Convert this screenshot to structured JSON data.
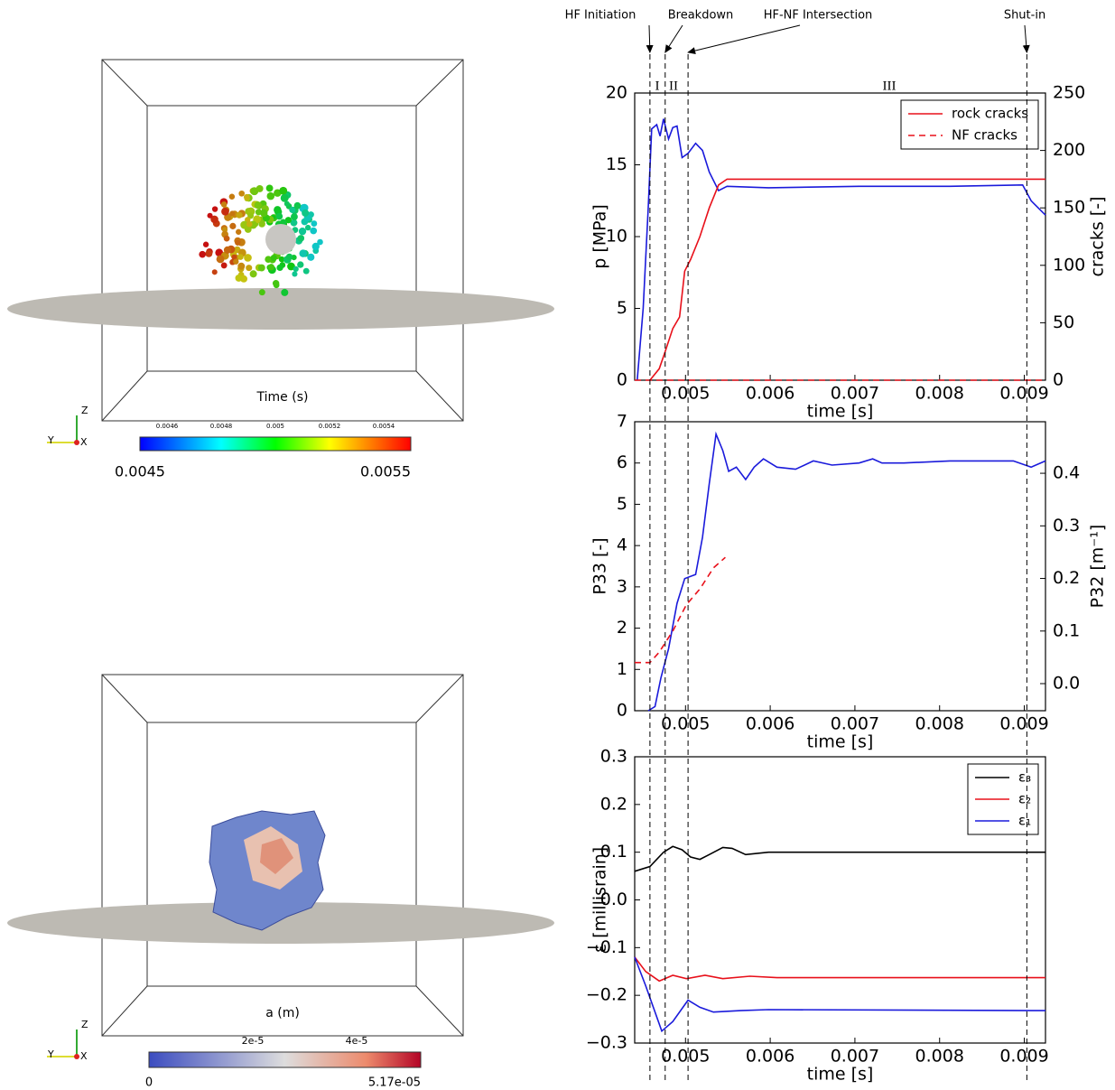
{
  "chart_data": [
    {
      "type": "line",
      "xlabel": "time [s]",
      "ylabel": "p [MPa]",
      "ylabel_color": "#1a1adb",
      "y2label": "cracks [-]",
      "y2label_color": "#e8101a",
      "xlim": [
        0.0044,
        0.00925
      ],
      "xticks": [
        0.005,
        0.006,
        0.007,
        0.008,
        0.009
      ],
      "ylim": [
        0,
        20
      ],
      "yticks": [
        0,
        5,
        10,
        15,
        20
      ],
      "y2lim": [
        0,
        250
      ],
      "y2ticks": [
        0,
        50,
        100,
        150,
        200,
        250
      ],
      "legend": "upper right",
      "series": [
        {
          "color": "#1a1adb",
          "style": "solid",
          "x": [
            0.00443,
            0.0045,
            0.00456,
            0.0046,
            0.00466,
            0.0047,
            0.00474,
            0.0048,
            0.00485,
            0.0049,
            0.00496,
            0.00503,
            0.00512,
            0.0052,
            0.00528,
            0.00539,
            0.00549,
            0.00598,
            0.00705,
            0.00812,
            0.00898,
            0.00908,
            0.00925
          ],
          "values": [
            0,
            5,
            12,
            17.5,
            17.8,
            17,
            18.2,
            16.8,
            17.6,
            17.7,
            15.5,
            15.8,
            16.5,
            16,
            14.5,
            13.2,
            13.5,
            13.4,
            13.5,
            13.5,
            13.6,
            12.5,
            11.5
          ]
        },
        {
          "name": "rock cracks",
          "color": "#e8101a",
          "style": "solid",
          "axis": "y2",
          "x": [
            0.00458,
            0.00469,
            0.00476,
            0.00485,
            0.00493,
            0.00499,
            0.00506,
            0.00517,
            0.00528,
            0.00539,
            0.00549,
            0.00925
          ],
          "values": [
            0,
            10,
            25,
            45,
            55,
            95,
            105,
            125,
            150,
            170,
            175,
            175
          ]
        },
        {
          "name": "NF cracks",
          "color": "#e8101a",
          "style": "dashed",
          "axis": "y2",
          "x": [
            0.0044,
            0.00925
          ],
          "values": [
            0,
            0
          ]
        }
      ]
    },
    {
      "type": "line",
      "xlabel": "time [s]",
      "ylabel": "P33 [-]",
      "ylabel_color": "#1a1adb",
      "y2label": "P32 [m⁻¹]",
      "y2label_color": "#e8101a",
      "xlim": [
        0.0044,
        0.00925
      ],
      "xticks": [
        0.005,
        0.006,
        0.007,
        0.008,
        0.009
      ],
      "ylim": [
        0,
        7
      ],
      "yticks": [
        0,
        1,
        2,
        3,
        4,
        5,
        6,
        7
      ],
      "y2lim": [
        -0.0515,
        0.498
      ],
      "y2ticks": [
        {
          "value": 0,
          "label": "0.0"
        },
        0.1,
        0.2,
        0.3,
        0.4
      ],
      "series": [
        {
          "color": "#1a1adb",
          "style": "solid",
          "x": [
            0.00456,
            0.00464,
            0.00471,
            0.0048,
            0.0049,
            0.00499,
            0.00512,
            0.0052,
            0.00528,
            0.00536,
            0.00544,
            0.00551,
            0.0056,
            0.00571,
            0.00581,
            0.00592,
            0.00608,
            0.0063,
            0.00651,
            0.00673,
            0.00705,
            0.00721,
            0.00732,
            0.00758,
            0.00812,
            0.00887,
            0.00908,
            0.00925
          ],
          "values": [
            0,
            0.1,
            0.8,
            1.5,
            2.6,
            3.2,
            3.3,
            4.2,
            5.5,
            6.7,
            6.3,
            5.8,
            5.9,
            5.6,
            5.9,
            6.1,
            5.9,
            5.85,
            6.05,
            5.95,
            6.0,
            6.1,
            6.0,
            6.0,
            6.05,
            6.05,
            5.9,
            6.05
          ]
        },
        {
          "color": "#e8101a",
          "style": "dashed",
          "axis": "y2",
          "x": [
            0.0044,
            0.00458,
            0.00469,
            0.00485,
            0.00501,
            0.00517,
            0.00533,
            0.00547
          ],
          "values": [
            0.04,
            0.04,
            0.06,
            0.1,
            0.15,
            0.18,
            0.22,
            0.24
          ]
        }
      ]
    },
    {
      "type": "line",
      "xlabel": "time [s]",
      "ylabel": "ε [millisrain]",
      "ylabel_color": "#000000",
      "xlim": [
        0.0044,
        0.00925
      ],
      "xticks": [
        0.005,
        0.006,
        0.007,
        0.008,
        0.009
      ],
      "ylim": [
        -0.3,
        0.3
      ],
      "yticks": [
        {
          "value": -0.3,
          "label": "−0.3"
        },
        {
          "value": -0.2,
          "label": "−0.2"
        },
        {
          "value": -0.1,
          "label": "−0.1"
        },
        {
          "value": 0,
          "label": "0.0"
        },
        0.1,
        0.2,
        0.3
      ],
      "legend": "upper right",
      "series": [
        {
          "name": "ε₃",
          "color": "#000000",
          "style": "solid",
          "x": [
            0.0044,
            0.00458,
            0.00474,
            0.00485,
            0.00496,
            0.00506,
            0.00517,
            0.00528,
            0.00544,
            0.00555,
            0.00571,
            0.00598,
            0.00651,
            0.00925
          ],
          "values": [
            0.06,
            0.07,
            0.1,
            0.112,
            0.105,
            0.09,
            0.085,
            0.095,
            0.11,
            0.108,
            0.095,
            0.1,
            0.1,
            0.1
          ]
        },
        {
          "name": "ε₂",
          "color": "#e8101a",
          "style": "solid",
          "x": [
            0.0044,
            0.00453,
            0.00469,
            0.00485,
            0.00501,
            0.00523,
            0.00544,
            0.00576,
            0.00608,
            0.00925
          ],
          "values": [
            -0.12,
            -0.15,
            -0.17,
            -0.158,
            -0.165,
            -0.158,
            -0.165,
            -0.16,
            -0.163,
            -0.163
          ]
        },
        {
          "name": "ε₁",
          "color": "#1a1adb",
          "style": "solid",
          "x": [
            0.0044,
            0.00453,
            0.00472,
            0.00485,
            0.00503,
            0.00517,
            0.00533,
            0.00565,
            0.00598,
            0.00925
          ],
          "values": [
            -0.12,
            -0.18,
            -0.275,
            -0.255,
            -0.21,
            -0.225,
            -0.235,
            -0.232,
            -0.23,
            -0.232
          ]
        }
      ]
    }
  ],
  "events": [
    {
      "label": "HF Initiation",
      "time": 0.00458
    },
    {
      "label": "Breakdown",
      "time": 0.00476
    },
    {
      "label": "HF-NF Intersection",
      "time": 0.00503
    },
    {
      "label": "Shut-in",
      "time": 0.00903
    }
  ],
  "phases": [
    "I",
    "II",
    "III"
  ],
  "renders": [
    {
      "title": "Time (s)",
      "axes": [
        "Z",
        "Y",
        "X"
      ],
      "colorbar_min": "0.0045",
      "colorbar_max": "0.0055",
      "colorbar_ticks": [
        "0.0046",
        "0.0048",
        "0.005",
        "0.0052",
        "0.0054"
      ]
    },
    {
      "title": "a (m)",
      "axes": [
        "Z",
        "Y",
        "X"
      ],
      "colorbar_min": "0",
      "colorbar_max": "5.17e-05",
      "colorbar_ticks": [
        "2e-5",
        "4e-5"
      ]
    }
  ]
}
